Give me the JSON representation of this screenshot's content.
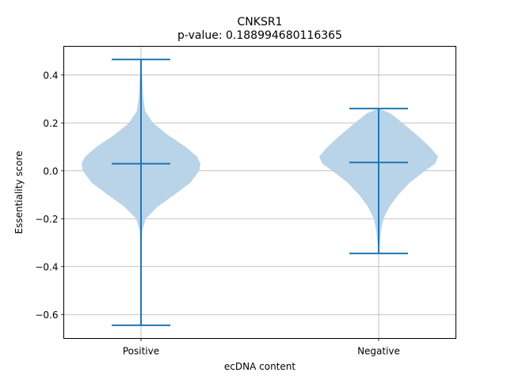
{
  "chart_data": {
    "type": "violin",
    "title": "CNKSR1",
    "subtitle": "p-value: 0.188994680116365",
    "xlabel": "ecDNA content",
    "ylabel": "Essentiality score",
    "categories": [
      "Positive",
      "Negative"
    ],
    "ylim": [
      -0.7,
      0.52
    ],
    "yticks": [
      0.4,
      0.2,
      0.0,
      -0.2,
      -0.4,
      -0.6
    ],
    "ytick_labels": [
      "0.4",
      "0.2",
      "0.0",
      "−0.2",
      "−0.4",
      "−0.6"
    ],
    "grid": true,
    "colors": {
      "body": "#b9d3e8",
      "lines": "#1f77b4"
    },
    "series": [
      {
        "category": "Positive",
        "max": 0.465,
        "median": 0.03,
        "min": -0.645,
        "density": [
          [
            -0.645,
            0.0
          ],
          [
            -0.5,
            0.004
          ],
          [
            -0.35,
            0.01
          ],
          [
            -0.25,
            0.02
          ],
          [
            -0.2,
            0.08
          ],
          [
            -0.15,
            0.28
          ],
          [
            -0.1,
            0.56
          ],
          [
            -0.05,
            0.83
          ],
          [
            0.0,
            0.98
          ],
          [
            0.03,
            1.0
          ],
          [
            0.06,
            0.94
          ],
          [
            0.1,
            0.75
          ],
          [
            0.15,
            0.45
          ],
          [
            0.2,
            0.2
          ],
          [
            0.25,
            0.07
          ],
          [
            0.3,
            0.04
          ],
          [
            0.35,
            0.03
          ],
          [
            0.4,
            0.02
          ],
          [
            0.465,
            0.0
          ]
        ]
      },
      {
        "category": "Negative",
        "max": 0.26,
        "median": 0.035,
        "min": -0.345,
        "density": [
          [
            -0.345,
            0.0
          ],
          [
            -0.3,
            0.02
          ],
          [
            -0.25,
            0.04
          ],
          [
            -0.2,
            0.08
          ],
          [
            -0.15,
            0.18
          ],
          [
            -0.1,
            0.33
          ],
          [
            -0.05,
            0.52
          ],
          [
            0.0,
            0.78
          ],
          [
            0.03,
            0.95
          ],
          [
            0.06,
            1.0
          ],
          [
            0.1,
            0.86
          ],
          [
            0.15,
            0.64
          ],
          [
            0.2,
            0.4
          ],
          [
            0.24,
            0.2
          ],
          [
            0.26,
            0.0
          ]
        ]
      }
    ]
  }
}
